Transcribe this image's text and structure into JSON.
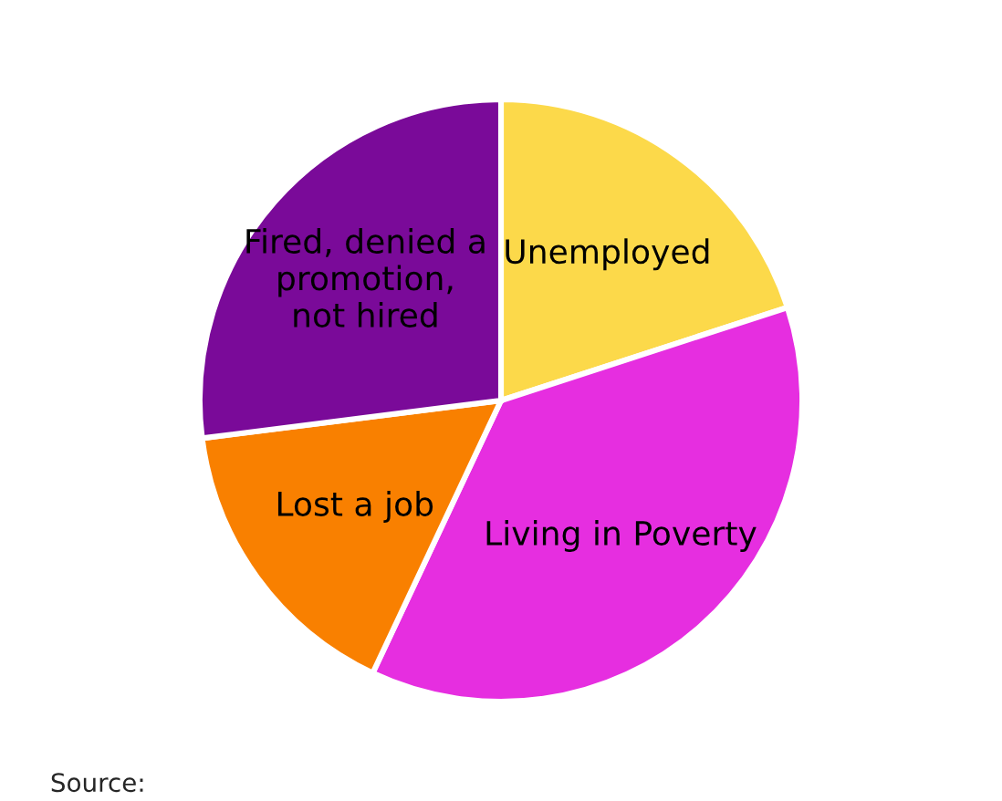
{
  "chart_data": {
    "type": "pie",
    "categories": [
      "Unemployed",
      "Living in Poverty",
      "Lost a job",
      "Fired, denied a\npromotion,\nnot hired"
    ],
    "values": [
      20,
      37,
      16,
      27
    ],
    "colors": [
      "#fcd94a",
      "#e62ee0",
      "#f98000",
      "#7a0a99"
    ],
    "legend": false,
    "annotations": [
      "Source:"
    ]
  }
}
